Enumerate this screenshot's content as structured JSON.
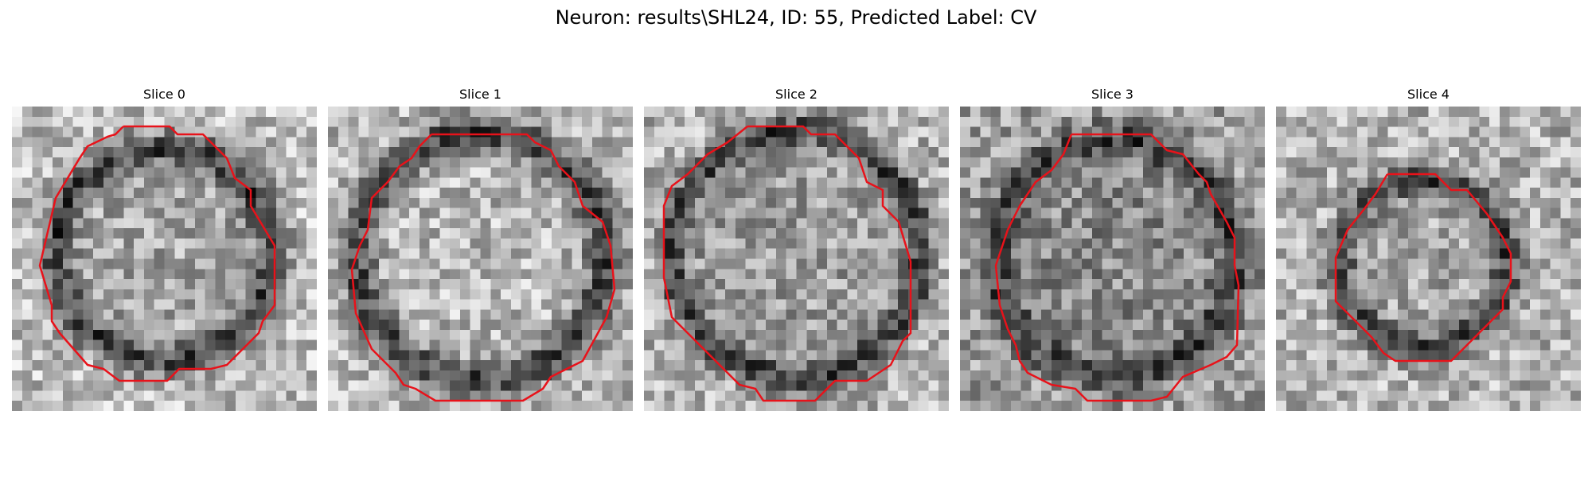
{
  "figure": {
    "title": "Neuron: results\\SHL24, ID: 55, Predicted Label: CV",
    "contour_color": "#e8121a"
  },
  "panels": [
    {
      "title": "Slice 0",
      "noise_seed": 11
    },
    {
      "title": "Slice 1",
      "noise_seed": 23
    },
    {
      "title": "Slice 2",
      "noise_seed": 37
    },
    {
      "title": "Slice 3",
      "noise_seed": 41
    },
    {
      "title": "Slice 4",
      "noise_seed": 59
    }
  ]
}
